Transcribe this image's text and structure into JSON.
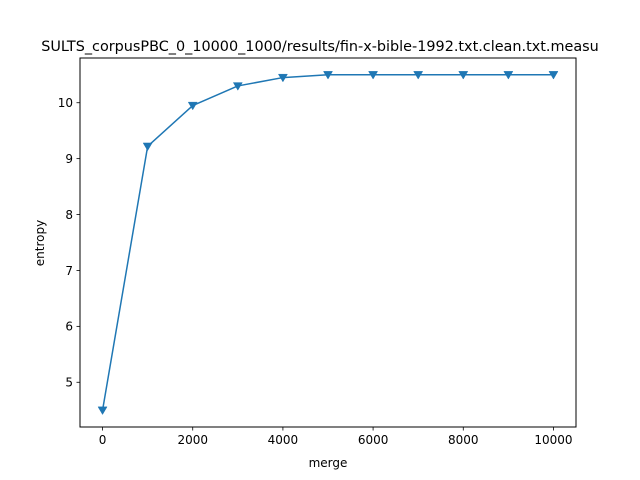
{
  "chart_data": {
    "type": "line",
    "title": "SULTS_corpusPBC_0_10000_1000/results/fin-x-bible-1992.txt.clean.txt.measu",
    "xlabel": "merge",
    "ylabel": "entropy",
    "xlim": [
      -500,
      10500
    ],
    "ylim": [
      4.2,
      10.8
    ],
    "xticks": [
      0,
      2000,
      4000,
      6000,
      8000,
      10000
    ],
    "yticks": [
      5,
      6,
      7,
      8,
      9,
      10
    ],
    "grid": false,
    "legend": "none",
    "series": [
      {
        "color": "#1f77b4",
        "marker": "triangle-down",
        "x": [
          0,
          1000,
          2000,
          3000,
          4000,
          5000,
          6000,
          7000,
          8000,
          9000,
          10000
        ],
        "y": [
          4.5,
          9.22,
          9.95,
          10.3,
          10.45,
          10.5,
          10.5,
          10.5,
          10.5,
          10.5,
          10.5
        ]
      }
    ]
  }
}
